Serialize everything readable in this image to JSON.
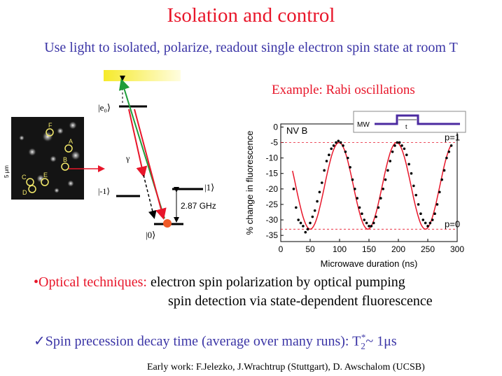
{
  "slide": {
    "title": "Isolation and control",
    "subtitle": "Use light to isolated, polarize, readout single electron spin state at room T",
    "example_label": "Example: Rabi oscillations",
    "bullet1_lead": "•Optical techniques:",
    "bullet1_rest": "electron spin polarization by optical pumping",
    "bullet2": "spin detection via state-dependent fluorescence",
    "bullet3_text": "✓Spin precession decay time (average over many runs): T",
    "bullet3_sub": "2",
    "bullet3_sup": "*",
    "bullet3_tail": "~ 1μs",
    "credit": "Early work: F.Jelezko, J.Wrachtrup (Stuttgart), D. Awschalom (UCSB)"
  },
  "micrograph": {
    "scale_label": "5 μm",
    "spots": [
      "F",
      "A",
      "B",
      "C",
      "D",
      "E"
    ],
    "spot_color": "#f3e96a"
  },
  "level_diagram": {
    "excited_label": "|e₀⟩",
    "minus1_label": "|-1⟩",
    "plus1_label": "|1⟩",
    "zero_label": "|0⟩",
    "gamma_label": "γ",
    "splitting_label": "2.87 GHz",
    "arrow_red": "#e8162a",
    "arrow_green": "#1f9d3a",
    "dot_color": "#f05a28"
  },
  "chart_data": {
    "type": "scatter",
    "title": "",
    "panel_label": "NV B",
    "xlabel": "Microwave duration (ns)",
    "ylabel": "% change in fluorescence",
    "xlim": [
      0,
      300
    ],
    "ylim": [
      -37,
      1
    ],
    "xticks": [
      0,
      50,
      100,
      150,
      200,
      250,
      300
    ],
    "yticks": [
      0,
      -5,
      -10,
      -15,
      -20,
      -25,
      -30,
      -35
    ],
    "ref_lines": [
      {
        "label": "p=1",
        "y": -5
      },
      {
        "label": "p=0",
        "y": -33
      }
    ],
    "pulse_label": "MW",
    "pulse_width_label": "t",
    "x": [
      22,
      26,
      30,
      34,
      38,
      42,
      46,
      50,
      54,
      58,
      62,
      66,
      70,
      74,
      78,
      82,
      86,
      90,
      94,
      98,
      102,
      106,
      110,
      114,
      118,
      122,
      126,
      130,
      134,
      138,
      142,
      146,
      150,
      154,
      158,
      162,
      166,
      170,
      174,
      178,
      182,
      186,
      190,
      194,
      198,
      202,
      206,
      210,
      214,
      218,
      222,
      226,
      230,
      234,
      238,
      242,
      246,
      250,
      254,
      258,
      262,
      266,
      270,
      274,
      278,
      282,
      286,
      290
    ],
    "y": [
      -20,
      -26,
      -30,
      -31,
      -32,
      -34,
      -33,
      -31,
      -29,
      -27,
      -24,
      -21,
      -18,
      -14,
      -11,
      -9,
      -7,
      -6,
      -5,
      -4.5,
      -5,
      -6,
      -8,
      -10,
      -13,
      -17,
      -20,
      -23,
      -26,
      -28,
      -30,
      -31,
      -32,
      -32,
      -31,
      -29,
      -26,
      -23,
      -20,
      -17,
      -14,
      -11,
      -8,
      -6,
      -5,
      -5,
      -6,
      -7,
      -9,
      -12,
      -15,
      -19,
      -22,
      -25,
      -28,
      -30,
      -31,
      -32,
      -31,
      -30,
      -28,
      -25,
      -21,
      -17,
      -14,
      -10,
      -8,
      -6
    ],
    "fit_color": "#e8162a",
    "point_color": "#000000"
  }
}
